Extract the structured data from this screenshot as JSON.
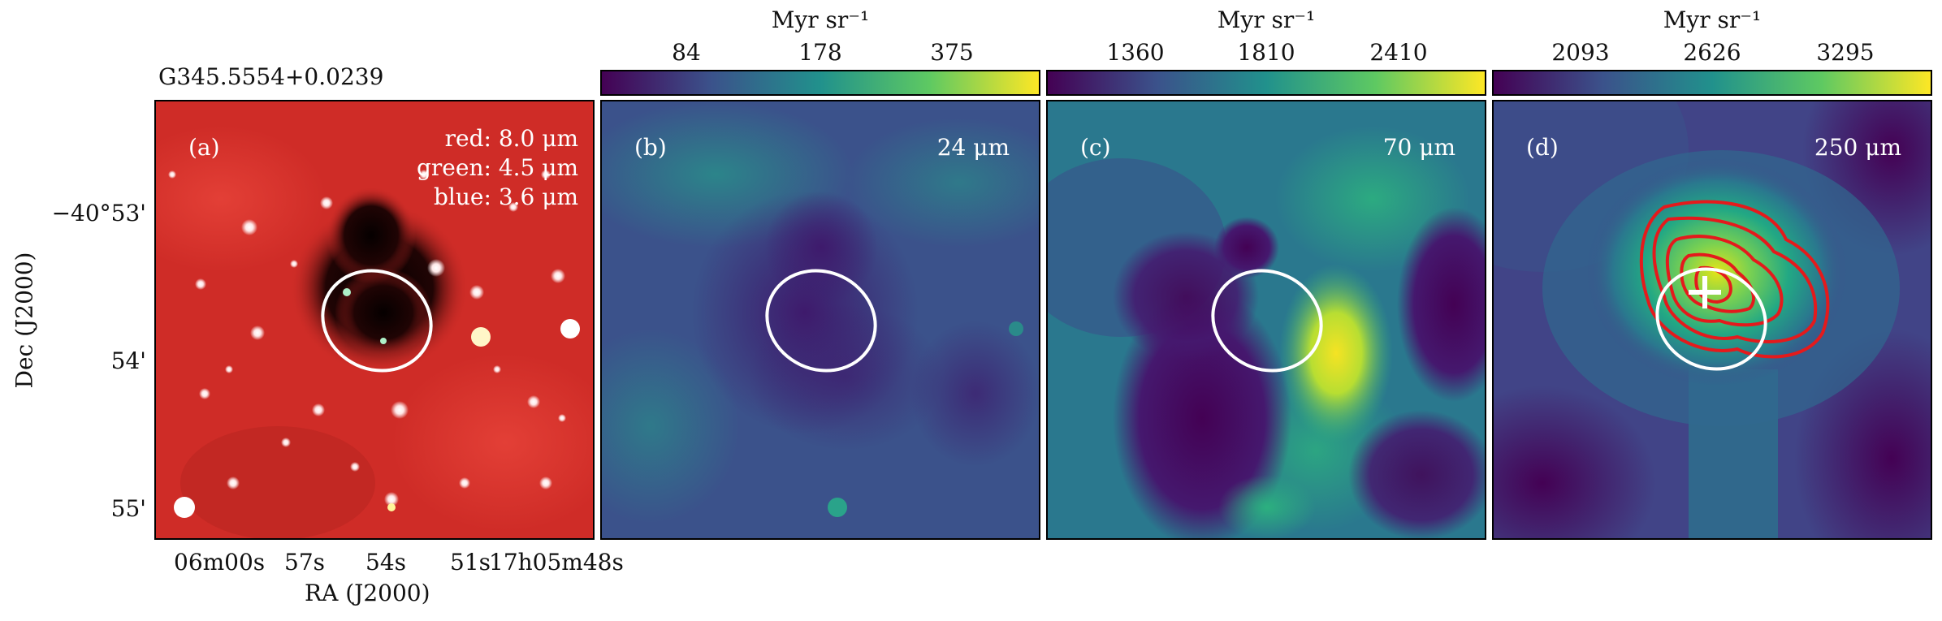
{
  "source_name": "G345.5554+0.0239",
  "axes": {
    "ylabel": "Dec (J2000)",
    "xlabel": "RA (J2000)",
    "y_ticks": [
      "−40°53'",
      "54'",
      "55'"
    ],
    "x_ticks": [
      "06m00s",
      "57s",
      "54s",
      "51s",
      "17h05m48s"
    ]
  },
  "panels": [
    {
      "id": "a",
      "tag": "(a)",
      "legend": [
        "red: 8.0 μm",
        "green: 4.5 μm",
        "blue: 3.6 μm"
      ]
    },
    {
      "id": "b",
      "tag": "(b)",
      "band": "24 μm",
      "colorbar": {
        "unit": "Myr sr⁻¹",
        "ticks": [
          "84",
          "178",
          "375"
        ]
      }
    },
    {
      "id": "c",
      "tag": "(c)",
      "band": "70 μm",
      "colorbar": {
        "unit": "Myr sr⁻¹",
        "ticks": [
          "1360",
          "1810",
          "2410"
        ]
      }
    },
    {
      "id": "d",
      "tag": "(d)",
      "band": "250 μm",
      "colorbar": {
        "unit": "Myr sr⁻¹",
        "ticks": [
          "2093",
          "2626",
          "3295"
        ]
      }
    }
  ],
  "colors": {
    "viridis_dark": "#440154",
    "viridis_mid": "#21918c",
    "viridis_bright": "#fde725",
    "ellipse": "#ffffff",
    "contour": "#e41a1c",
    "ir_red": "#d42a2a"
  }
}
